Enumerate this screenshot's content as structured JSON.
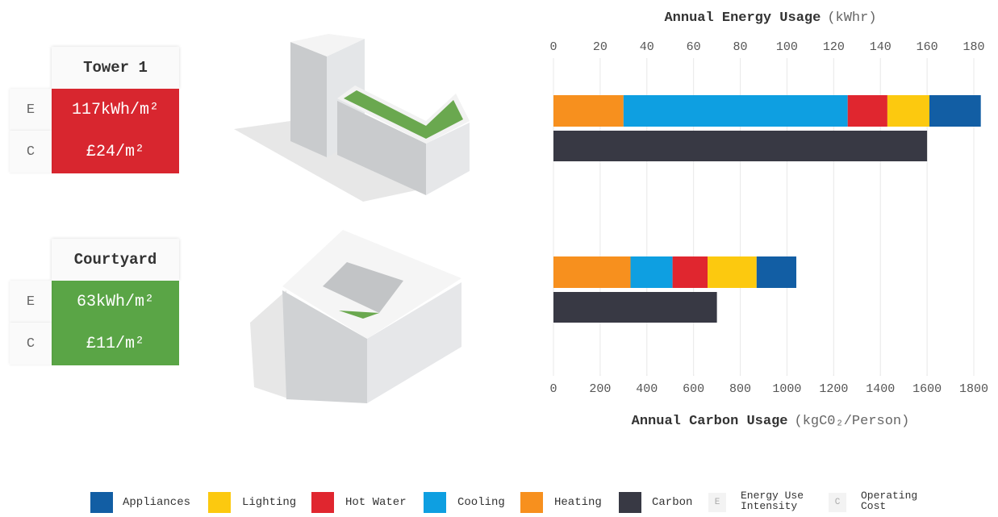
{
  "cards": {
    "letters": [
      "E",
      "C"
    ],
    "items": [
      {
        "energy": "117kWh/m²",
        "cost": "£24/m²",
        "color": "#d8262f"
      },
      {
        "energy": "63kWh/m²",
        "cost": "£11/m²",
        "color": "#5aa546"
      }
    ]
  },
  "chart_data": {
    "type": "bar",
    "orientation": "horizontal",
    "stacked": true,
    "title": "Annual Energy Usage",
    "title_unit": "(kWhr)",
    "x2_title": "Annual Carbon Usage",
    "x2_unit": "(kgC0₂/Person)",
    "categories": [
      "Tower 1",
      "Courtyard"
    ],
    "xlim": [
      0,
      180
    ],
    "xticks": [
      0,
      20,
      40,
      60,
      80,
      100,
      120,
      140,
      160,
      180
    ],
    "x2lim": [
      0,
      1800
    ],
    "x2ticks": [
      0,
      200,
      400,
      600,
      800,
      1000,
      1200,
      1400,
      1600,
      1800
    ],
    "grid": true,
    "series": [
      {
        "name": "Appliances",
        "color": "#125ea4",
        "values": [
          22,
          17
        ]
      },
      {
        "name": "Lighting",
        "color": "#fcc90f",
        "values": [
          18,
          21
        ]
      },
      {
        "name": "Hot Water",
        "color": "#e0262f",
        "values": [
          17,
          15
        ]
      },
      {
        "name": "Cooling",
        "color": "#0e9fe1",
        "values": [
          96,
          18
        ]
      },
      {
        "name": "Heating",
        "color": "#f7901e",
        "values": [
          30,
          33
        ]
      },
      {
        "name": "Carbon",
        "color": "#383944",
        "values": [
          1600,
          700
        ],
        "axis": "x2"
      }
    ],
    "legend_keys": [
      {
        "letter": "E",
        "text": "Energy Use Intensity"
      },
      {
        "letter": "C",
        "text": "Operating Cost"
      }
    ]
  }
}
